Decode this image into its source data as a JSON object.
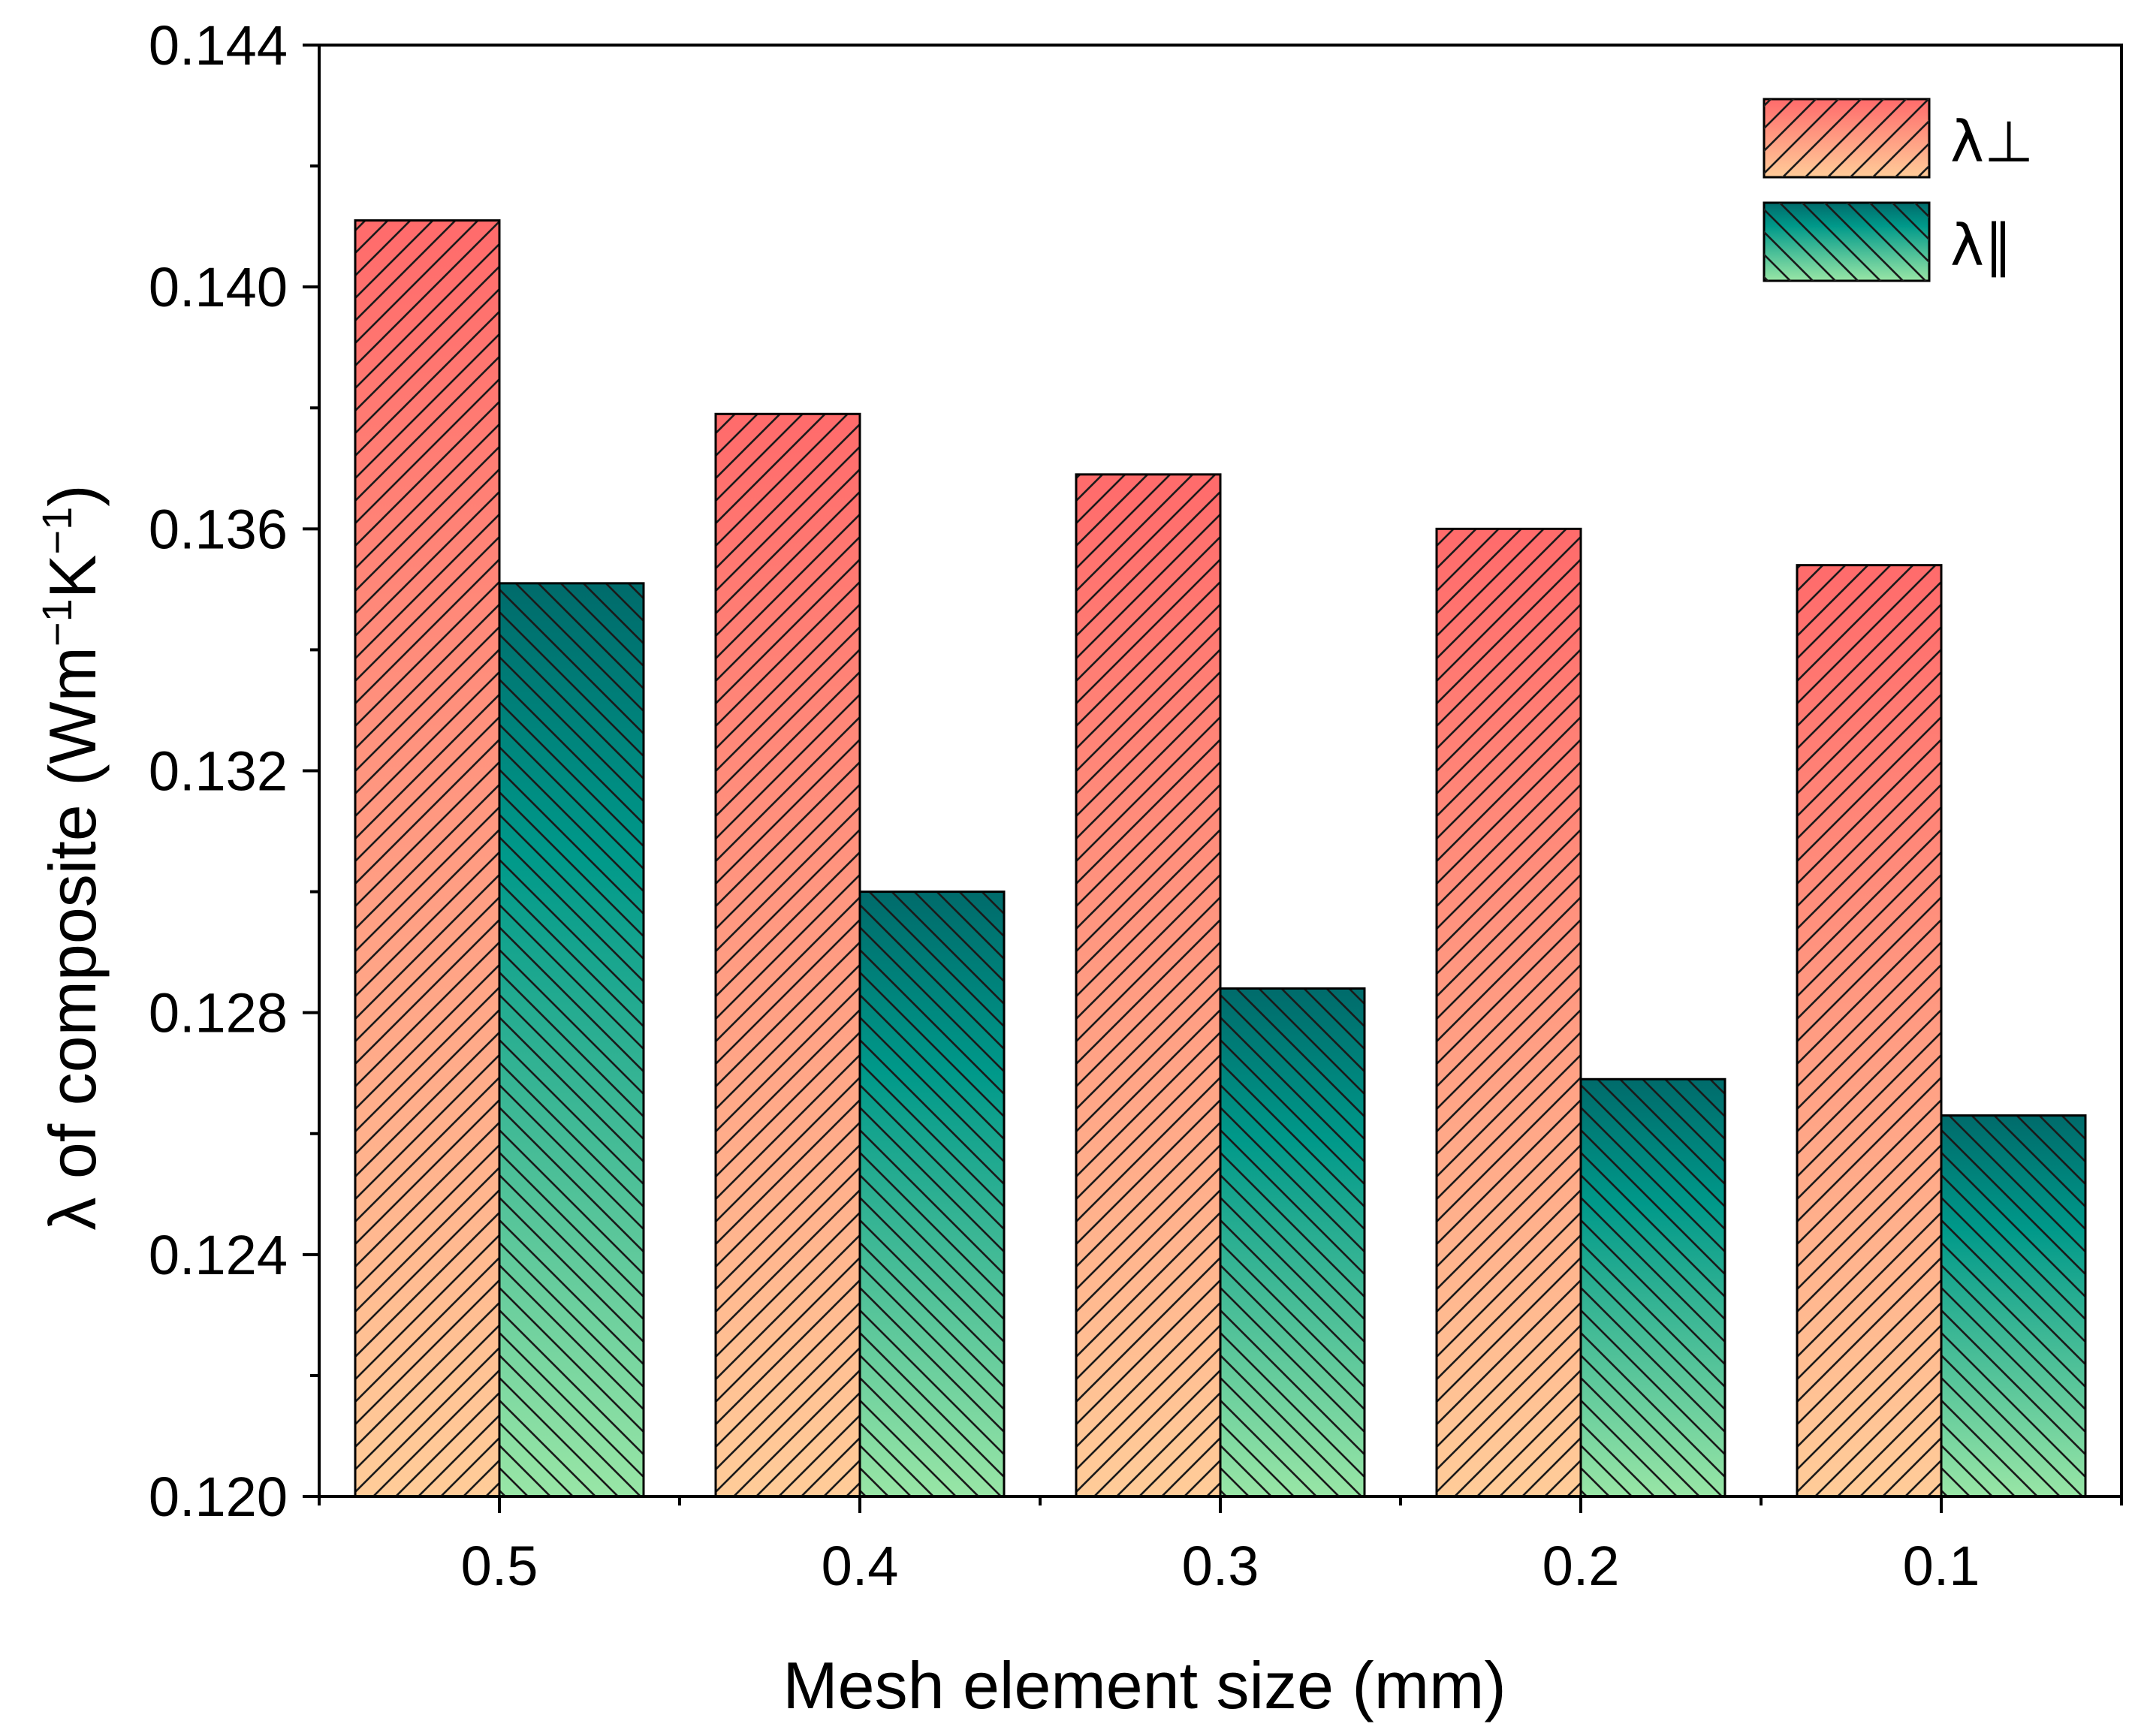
{
  "chart_data": {
    "type": "bar",
    "title": "",
    "xlabel": "Mesh element size (mm)",
    "ylabel_main": "λ of composite (Wm",
    "ylabel_sup1": "−1",
    "ylabel_mid": "K",
    "ylabel_sup2": "−1",
    "ylabel_end": ")",
    "categories": [
      "0.5",
      "0.4",
      "0.3",
      "0.2",
      "0.1"
    ],
    "ylim": [
      0.12,
      0.144
    ],
    "yticks": [
      "0.120",
      "0.124",
      "0.128",
      "0.132",
      "0.136",
      "0.140",
      "0.144"
    ],
    "legend_position": "top-right",
    "series": [
      {
        "name": "λ⊥",
        "values": [
          0.1411,
          0.1379,
          0.1369,
          0.136,
          0.1354
        ],
        "color_top": "#ff6b6b",
        "color_bottom": "#ffcc99",
        "hatch": "forward"
      },
      {
        "name": "λ∥",
        "values": [
          0.1351,
          0.13,
          0.1284,
          0.1269,
          0.1263
        ],
        "color_top": "#006b6b",
        "color_mid": "#00998a",
        "color_bottom": "#99e6a6",
        "hatch": "backward"
      }
    ]
  }
}
